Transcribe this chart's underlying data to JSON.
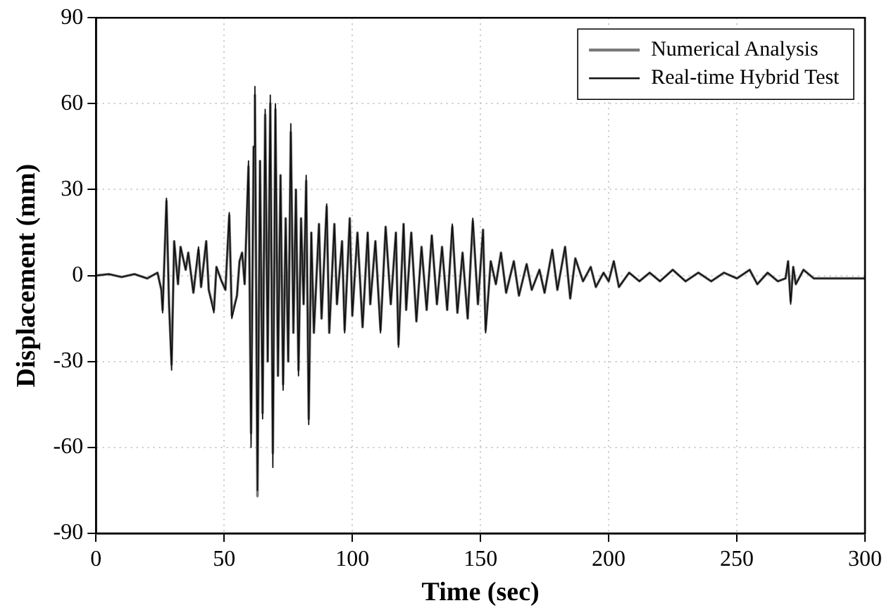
{
  "chart_data": {
    "type": "line",
    "xlabel": "Time (sec)",
    "ylabel": "Displacement (mm)",
    "x": [
      0,
      5,
      10,
      15,
      20,
      24,
      25.5,
      26,
      27.5,
      28.5,
      29.5,
      30.5,
      32,
      33,
      35,
      36,
      38,
      40,
      41,
      43,
      44,
      46,
      47,
      49,
      50.5,
      52,
      53,
      55,
      56,
      57,
      58,
      59.5,
      60.5,
      61.5,
      62,
      63,
      64,
      65,
      66,
      67,
      68,
      69,
      70,
      71,
      72,
      73,
      74,
      75,
      76,
      77,
      78,
      79,
      80,
      81,
      82,
      83,
      84,
      85,
      87,
      88,
      90,
      91,
      93,
      94,
      96,
      97,
      99,
      100,
      102,
      104,
      106,
      107,
      109,
      111,
      113,
      115,
      117,
      118,
      120,
      121,
      123,
      125,
      127,
      129,
      131,
      133,
      135,
      137,
      139,
      141,
      143,
      145,
      147,
      149,
      151,
      152,
      154,
      156,
      158,
      160,
      163,
      165,
      168,
      170,
      173,
      175,
      178,
      180,
      183,
      185,
      187,
      190,
      193,
      195,
      198,
      200,
      202,
      204,
      208,
      212,
      216,
      220,
      225,
      230,
      235,
      240,
      245,
      250,
      255,
      258,
      262,
      266,
      269,
      270,
      271,
      272,
      273,
      276,
      280,
      285,
      290,
      300
    ],
    "series": [
      {
        "name": "Numerical Analysis",
        "color": "#7a7a7a",
        "values": [
          0,
          0.5,
          -0.5,
          0.5,
          -1,
          1,
          -5,
          -12,
          26,
          -10,
          -31,
          12,
          -3,
          10,
          2,
          8,
          -6,
          9,
          -4,
          12,
          -5,
          -12,
          3,
          -2,
          -5,
          21,
          -14,
          -7,
          5,
          8,
          -3,
          38,
          -55,
          45,
          63,
          -77,
          40,
          -48,
          56,
          -30,
          60,
          -62,
          58,
          -35,
          35,
          -38,
          20,
          -30,
          50,
          -20,
          30,
          -33,
          20,
          -10,
          33,
          -50,
          15,
          -20,
          18,
          -15,
          24,
          -20,
          18,
          -10,
          12,
          -19,
          20,
          -14,
          15,
          -18,
          15,
          -10,
          12,
          -19,
          17,
          -10,
          15,
          -24,
          18,
          -12,
          15,
          -16,
          10,
          -12,
          14,
          -10,
          10,
          -12,
          17,
          -13,
          8,
          -15,
          19,
          -10,
          16,
          -19,
          5,
          -3,
          8,
          -6,
          5,
          -7,
          4,
          -5,
          2,
          -6,
          9,
          -5,
          10,
          -8,
          6,
          -2,
          3,
          -4,
          1,
          -2,
          5,
          -4,
          1,
          -2,
          1,
          -2,
          2,
          -2,
          1,
          -2,
          1,
          -1,
          2,
          -3,
          1,
          -2,
          -1,
          5,
          -9,
          3,
          -3,
          2,
          -1,
          -1,
          -1,
          -1
        ]
      },
      {
        "name": "Real-time Hybrid Test",
        "color": "#111111",
        "values": [
          0,
          0.5,
          -0.5,
          0.5,
          -1,
          1,
          -5,
          -13,
          27,
          -10,
          -33,
          12,
          -3,
          10,
          2,
          8,
          -6,
          10,
          -4,
          12,
          -5,
          -13,
          3,
          -2,
          -5,
          22,
          -15,
          -7,
          5,
          8,
          -3,
          40,
          -60,
          45,
          66,
          -75,
          40,
          -50,
          58,
          -30,
          63,
          -67,
          60,
          -35,
          35,
          -40,
          20,
          -30,
          53,
          -20,
          30,
          -35,
          20,
          -10,
          35,
          -52,
          15,
          -20,
          18,
          -15,
          25,
          -20,
          18,
          -10,
          12,
          -20,
          20,
          -14,
          15,
          -18,
          15,
          -10,
          12,
          -20,
          17,
          -10,
          15,
          -25,
          18,
          -12,
          15,
          -16,
          10,
          -12,
          14,
          -10,
          10,
          -12,
          18,
          -13,
          8,
          -15,
          20,
          -10,
          16,
          -20,
          5,
          -3,
          8,
          -6,
          5,
          -7,
          4,
          -5,
          2,
          -6,
          9,
          -5,
          10,
          -8,
          6,
          -2,
          3,
          -4,
          1,
          -2,
          5,
          -4,
          1,
          -2,
          1,
          -2,
          2,
          -2,
          1,
          -2,
          1,
          -1,
          2,
          -3,
          1,
          -2,
          -1,
          5,
          -10,
          3,
          -3,
          2,
          -1,
          -1,
          -1,
          -1
        ]
      }
    ],
    "xlim": [
      0,
      300
    ],
    "xticks": [
      0,
      50,
      100,
      150,
      200,
      250,
      300
    ],
    "ylim": [
      -90,
      90
    ],
    "yticks": [
      -90,
      -60,
      -30,
      0,
      30,
      60,
      90
    ],
    "grid": true,
    "legend": "top right",
    "marker": "none",
    "line_style": "solid"
  }
}
